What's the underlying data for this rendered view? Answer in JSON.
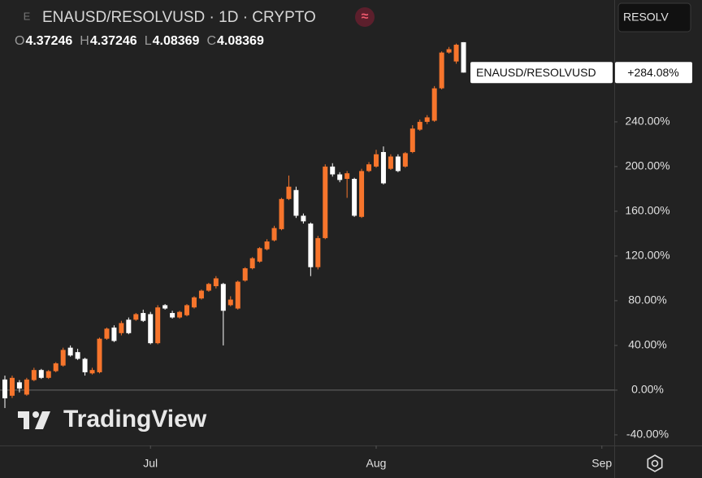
{
  "header": {
    "symbol_icon": "E",
    "title": "ENAUSD/RESOLVUSD · 1D · CRYPTO",
    "ohlc": [
      {
        "key": "O",
        "value": "4.37246"
      },
      {
        "key": "H",
        "value": "4.37246"
      },
      {
        "key": "L",
        "value": "4.08369"
      },
      {
        "key": "C",
        "value": "4.08369"
      }
    ],
    "compare_button": "RESOLV"
  },
  "watermark": "TradingView",
  "chart_data": {
    "type": "candlestick",
    "x": [
      0,
      1,
      2,
      3,
      4,
      5,
      6,
      7,
      8,
      9,
      10,
      11,
      12,
      13,
      14,
      15,
      16,
      17,
      18,
      19,
      20,
      21,
      22,
      23,
      24,
      25,
      26,
      27,
      28,
      29,
      30,
      31,
      32,
      33,
      34,
      35,
      36,
      37,
      38,
      39,
      40,
      41,
      42,
      43,
      44,
      45,
      46,
      47,
      48,
      49,
      50,
      51,
      52,
      53,
      54,
      55,
      56,
      57,
      58,
      59,
      60,
      61,
      62,
      63
    ],
    "xlim": [
      -0.67,
      83.7
    ],
    "xticks": [
      {
        "value": 20,
        "label": "Jul"
      },
      {
        "value": 51,
        "label": "Aug"
      },
      {
        "value": 82,
        "label": "Sep"
      }
    ],
    "ylim": [
      -49.5,
      349
    ],
    "yticks": [
      {
        "value": -40,
        "label": "-40.00%"
      },
      {
        "value": 0,
        "label": "0.00%"
      },
      {
        "value": 40,
        "label": "40.00%"
      },
      {
        "value": 80,
        "label": "80.00%"
      },
      {
        "value": 120,
        "label": "120.00%"
      },
      {
        "value": 160,
        "label": "160.00%"
      },
      {
        "value": 200,
        "label": "200.00%"
      },
      {
        "value": 240,
        "label": "240.00%"
      }
    ],
    "baseline": 0,
    "up_color": "#f7752c",
    "down_color": "#ffffff",
    "series": [
      {
        "name": "ENAUSD/RESOLVUSD",
        "open": [
          9.5,
          -5,
          7,
          -4,
          9,
          18,
          11,
          17,
          22,
          38,
          34,
          28,
          15,
          16,
          46,
          56,
          51,
          63,
          63,
          69,
          68,
          42,
          76,
          69,
          65,
          67,
          74,
          82,
          89,
          93,
          95,
          76,
          73,
          98,
          109,
          115,
          126,
          134,
          144,
          171,
          179,
          156,
          149,
          110,
          136,
          200,
          193,
          189,
          189,
          155,
          196,
          200,
          213,
          198,
          209,
          200,
          213,
          233,
          240,
          241,
          270,
          302,
          294,
          311.25
        ],
        "high": [
          13,
          13,
          9,
          11,
          20,
          19,
          18,
          25,
          38,
          40,
          37,
          29,
          20,
          47,
          56,
          58,
          62,
          65,
          69,
          72,
          70,
          76,
          77,
          71,
          71,
          77,
          84,
          90,
          96,
          102,
          96,
          84,
          98,
          110,
          119,
          128,
          135,
          147,
          172,
          192,
          182,
          158,
          150,
          138,
          202,
          203,
          195,
          196,
          190,
          198,
          204,
          215,
          218,
          211,
          211,
          213,
          237,
          242,
          246,
          272,
          303,
          307,
          310,
          311.25
        ],
        "low": [
          -16,
          -7,
          -2,
          -5,
          8,
          10,
          10,
          16,
          21,
          30,
          27,
          13,
          14,
          15,
          45,
          43,
          49,
          50,
          62,
          61,
          41,
          41,
          72,
          64,
          64,
          66,
          73,
          81,
          88,
          91,
          40,
          75,
          72,
          97,
          108,
          114,
          125,
          133,
          143,
          170,
          154,
          149,
          102,
          108,
          135,
          191,
          186,
          172,
          155,
          154,
          195,
          199,
          184,
          197,
          195,
          199,
          212,
          232,
          238,
          240,
          269,
          301,
          292,
          284.08
        ],
        "close": [
          -7.3,
          11,
          1.5,
          9.5,
          18,
          11,
          17,
          24,
          36,
          31,
          28,
          16,
          18,
          46,
          55,
          44,
          60,
          51,
          68,
          62,
          42,
          74,
          73,
          65,
          70,
          76,
          83,
          89,
          95,
          100,
          71,
          81,
          97,
          109,
          118,
          127,
          133,
          145,
          171,
          182,
          156,
          151,
          110,
          136,
          200,
          193,
          188,
          194,
          156,
          196,
          202,
          211,
          185,
          209,
          196,
          212,
          234,
          240,
          244,
          270,
          302,
          305,
          309,
          284.08
        ]
      }
    ],
    "last_label": "ENAUSD/RESOLVUSD",
    "last_value": 284.08,
    "last_value_label": "+284.08%"
  }
}
